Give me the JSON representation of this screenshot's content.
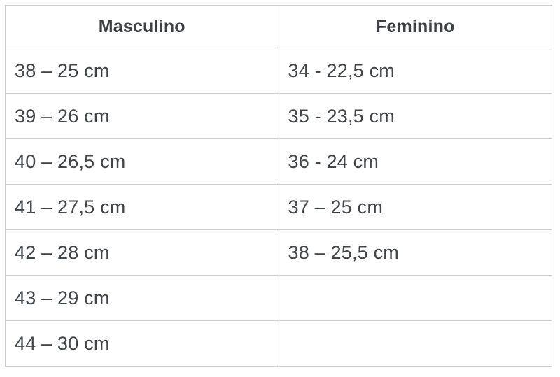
{
  "size_table": {
    "columns": [
      {
        "header": "Masculino",
        "rows": [
          "38 – 25 cm",
          "39 – 26 cm",
          "40 – 26,5 cm",
          "41 – 27,5 cm",
          "42 – 28 cm",
          "43 – 29 cm",
          "44 – 30 cm"
        ]
      },
      {
        "header": "Feminino",
        "rows": [
          "34 - 22,5 cm",
          "35 - 23,5 cm",
          "36 - 24 cm",
          "37 – 25 cm",
          "38 – 25,5 cm",
          "",
          ""
        ]
      }
    ],
    "colors": {
      "border": "#cecece",
      "text": "#414548",
      "header_text": "#3d4144",
      "background": "#ffffff"
    }
  }
}
